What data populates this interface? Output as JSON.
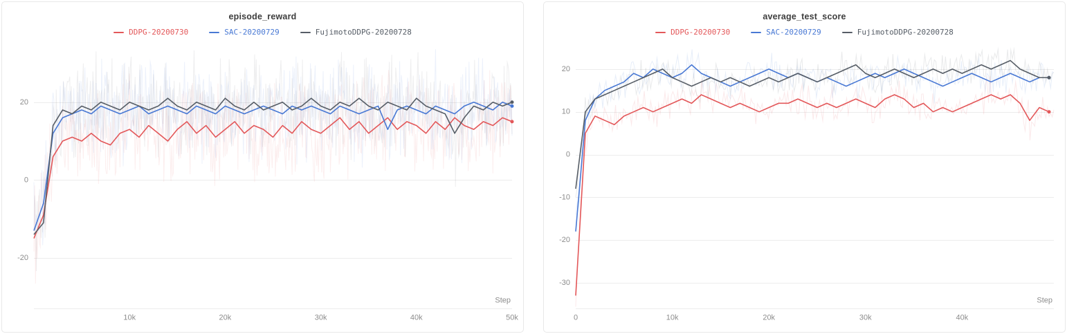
{
  "colors": {
    "ddpg_red": "#e35759",
    "sac_blue": "#4878d4",
    "fujimoto_gray": "#565d66",
    "grid": "#ececec",
    "tick_label": "#8c8c8c",
    "title_text": "#3d3d3d"
  },
  "chart_data": [
    {
      "type": "line",
      "title": "episode_reward",
      "xlabel": "Step",
      "legend_position": "top",
      "grid": "horizontal",
      "xlim": [
        0,
        50000
      ],
      "ylim": [
        -33,
        34
      ],
      "yticks": [
        {
          "v": -20,
          "label": "-20"
        },
        {
          "v": 0,
          "label": "0"
        },
        {
          "v": 20,
          "label": "20"
        }
      ],
      "xticks": [
        {
          "v": 10000,
          "label": "10k"
        },
        {
          "v": 20000,
          "label": "20k"
        },
        {
          "v": 30000,
          "label": "30k"
        },
        {
          "v": 40000,
          "label": "40k"
        },
        {
          "v": 50000,
          "label": "50k"
        }
      ],
      "raw_overlay": {
        "amplitude": 15,
        "opacity": 0.1,
        "points": 600
      },
      "x": [
        0,
        1000,
        2000,
        3000,
        4000,
        5000,
        6000,
        7000,
        8000,
        9000,
        10000,
        11000,
        12000,
        13000,
        14000,
        15000,
        16000,
        17000,
        18000,
        19000,
        20000,
        21000,
        22000,
        23000,
        24000,
        25000,
        26000,
        27000,
        28000,
        29000,
        30000,
        31000,
        32000,
        33000,
        34000,
        35000,
        36000,
        37000,
        38000,
        39000,
        40000,
        41000,
        42000,
        43000,
        44000,
        45000,
        46000,
        47000,
        48000,
        49000,
        50000
      ],
      "series": [
        {
          "name": "DDPG-20200730",
          "color": "#e35759",
          "values": [
            -15,
            -9,
            6,
            10,
            11,
            10,
            12,
            10,
            9,
            12,
            13,
            11,
            14,
            12,
            10,
            13,
            15,
            12,
            14,
            11,
            13,
            15,
            12,
            14,
            13,
            11,
            14,
            12,
            15,
            13,
            12,
            14,
            16,
            13,
            15,
            12,
            14,
            16,
            13,
            15,
            14,
            12,
            15,
            13,
            16,
            14,
            13,
            15,
            14,
            16,
            15
          ]
        },
        {
          "name": "SAC-20200729",
          "color": "#4878d4",
          "values": [
            -13,
            -6,
            12,
            16,
            17,
            18,
            17,
            19,
            18,
            17,
            18,
            19,
            17,
            18,
            19,
            18,
            17,
            19,
            18,
            17,
            19,
            18,
            17,
            18,
            19,
            18,
            17,
            19,
            18,
            19,
            18,
            17,
            19,
            18,
            17,
            18,
            19,
            13,
            18,
            19,
            18,
            17,
            19,
            18,
            17,
            19,
            20,
            19,
            18,
            20,
            19
          ]
        },
        {
          "name": "FujimotoDDPG-20200728",
          "color": "#565d66",
          "values": [
            -14,
            -11,
            14,
            18,
            17,
            19,
            18,
            20,
            19,
            18,
            20,
            19,
            18,
            19,
            21,
            19,
            18,
            20,
            19,
            18,
            21,
            19,
            18,
            20,
            18,
            19,
            20,
            18,
            19,
            21,
            19,
            18,
            20,
            19,
            21,
            19,
            18,
            20,
            19,
            18,
            21,
            19,
            18,
            17,
            12,
            16,
            19,
            18,
            20,
            19,
            20
          ]
        }
      ]
    },
    {
      "type": "line",
      "title": "average_test_score",
      "xlabel": "Step",
      "legend_position": "top",
      "grid": "horizontal",
      "xlim": [
        0,
        49500
      ],
      "ylim": [
        -36,
        25
      ],
      "yticks": [
        {
          "v": -30,
          "label": "-30"
        },
        {
          "v": -20,
          "label": "-20"
        },
        {
          "v": -10,
          "label": "-10"
        },
        {
          "v": 0,
          "label": "0"
        },
        {
          "v": 10,
          "label": "10"
        },
        {
          "v": 20,
          "label": "20"
        }
      ],
      "xticks": [
        {
          "v": 0,
          "label": "0"
        },
        {
          "v": 10000,
          "label": "10k"
        },
        {
          "v": 20000,
          "label": "20k"
        },
        {
          "v": 30000,
          "label": "30k"
        },
        {
          "v": 40000,
          "label": "40k"
        }
      ],
      "raw_overlay": {
        "amplitude": 5,
        "opacity": 0.13,
        "points": 300
      },
      "x": [
        0,
        1000,
        2000,
        3000,
        4000,
        5000,
        6000,
        7000,
        8000,
        9000,
        10000,
        11000,
        12000,
        13000,
        14000,
        15000,
        16000,
        17000,
        18000,
        19000,
        20000,
        21000,
        22000,
        23000,
        24000,
        25000,
        26000,
        27000,
        28000,
        29000,
        30000,
        31000,
        32000,
        33000,
        34000,
        35000,
        36000,
        37000,
        38000,
        39000,
        40000,
        41000,
        42000,
        43000,
        44000,
        45000,
        46000,
        47000,
        48000,
        49000
      ],
      "series": [
        {
          "name": "DDPG-20200730",
          "color": "#e35759",
          "values": [
            -33,
            5,
            9,
            8,
            7,
            9,
            10,
            11,
            10,
            11,
            12,
            13,
            12,
            14,
            13,
            12,
            11,
            12,
            11,
            10,
            11,
            12,
            12,
            13,
            12,
            11,
            12,
            11,
            12,
            13,
            12,
            11,
            13,
            14,
            13,
            11,
            12,
            10,
            11,
            10,
            11,
            12,
            13,
            14,
            13,
            14,
            12,
            8,
            11,
            10
          ]
        },
        {
          "name": "SAC-20200729",
          "color": "#4878d4",
          "values": [
            -18,
            8,
            13,
            15,
            16,
            17,
            19,
            18,
            20,
            19,
            18,
            19,
            21,
            19,
            18,
            17,
            16,
            17,
            18,
            19,
            20,
            19,
            18,
            19,
            18,
            17,
            18,
            17,
            16,
            17,
            18,
            19,
            18,
            19,
            20,
            19,
            18,
            17,
            16,
            17,
            18,
            19,
            18,
            17,
            18,
            19,
            18,
            17,
            18,
            18
          ]
        },
        {
          "name": "FujimotoDDPG-20200728",
          "color": "#565d66",
          "values": [
            -8,
            10,
            13,
            14,
            15,
            16,
            17,
            18,
            19,
            20,
            18,
            17,
            16,
            17,
            18,
            17,
            18,
            17,
            16,
            17,
            18,
            17,
            18,
            19,
            18,
            17,
            18,
            19,
            20,
            21,
            19,
            18,
            19,
            20,
            19,
            18,
            19,
            20,
            19,
            20,
            19,
            20,
            21,
            20,
            21,
            22,
            20,
            19,
            18,
            18
          ]
        }
      ]
    }
  ]
}
